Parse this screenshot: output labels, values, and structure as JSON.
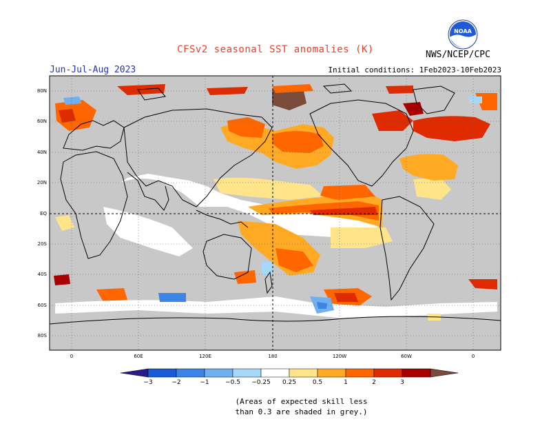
{
  "header": {
    "title": "CFSv2 seasonal SST anomalies (K)",
    "period": "Jun-Jul-Aug 2023",
    "initial_conditions": "Initial conditions: 1Feb2023-10Feb2023",
    "agency": "NWS/NCEP/CPC",
    "logo_text": "NOAA"
  },
  "map": {
    "lat_labels": [
      "80N",
      "60N",
      "40N",
      "20N",
      "EQ",
      "20S",
      "40S",
      "60S",
      "80S"
    ],
    "lon_labels": [
      "0",
      "60E",
      "120E",
      "180",
      "120W",
      "60W",
      "0"
    ],
    "background_color": "#c8c8c8"
  },
  "legend": {
    "ticks": [
      "−3",
      "−2",
      "−1",
      "−0.5",
      "−0.25",
      "0.25",
      "0.5",
      "1",
      "2",
      "3"
    ],
    "colors": [
      "#2a1a8a",
      "#1a5cd6",
      "#3c84e6",
      "#6fb0f0",
      "#a8d8f8",
      "#ffffff",
      "#ffe48a",
      "#ffaa22",
      "#ff6600",
      "#e02a00",
      "#a80000",
      "#7a4a3a"
    ]
  },
  "note": {
    "line1": "(Areas of expected skill less",
    "line2": "than 0.3 are shaded in grey.)"
  }
}
